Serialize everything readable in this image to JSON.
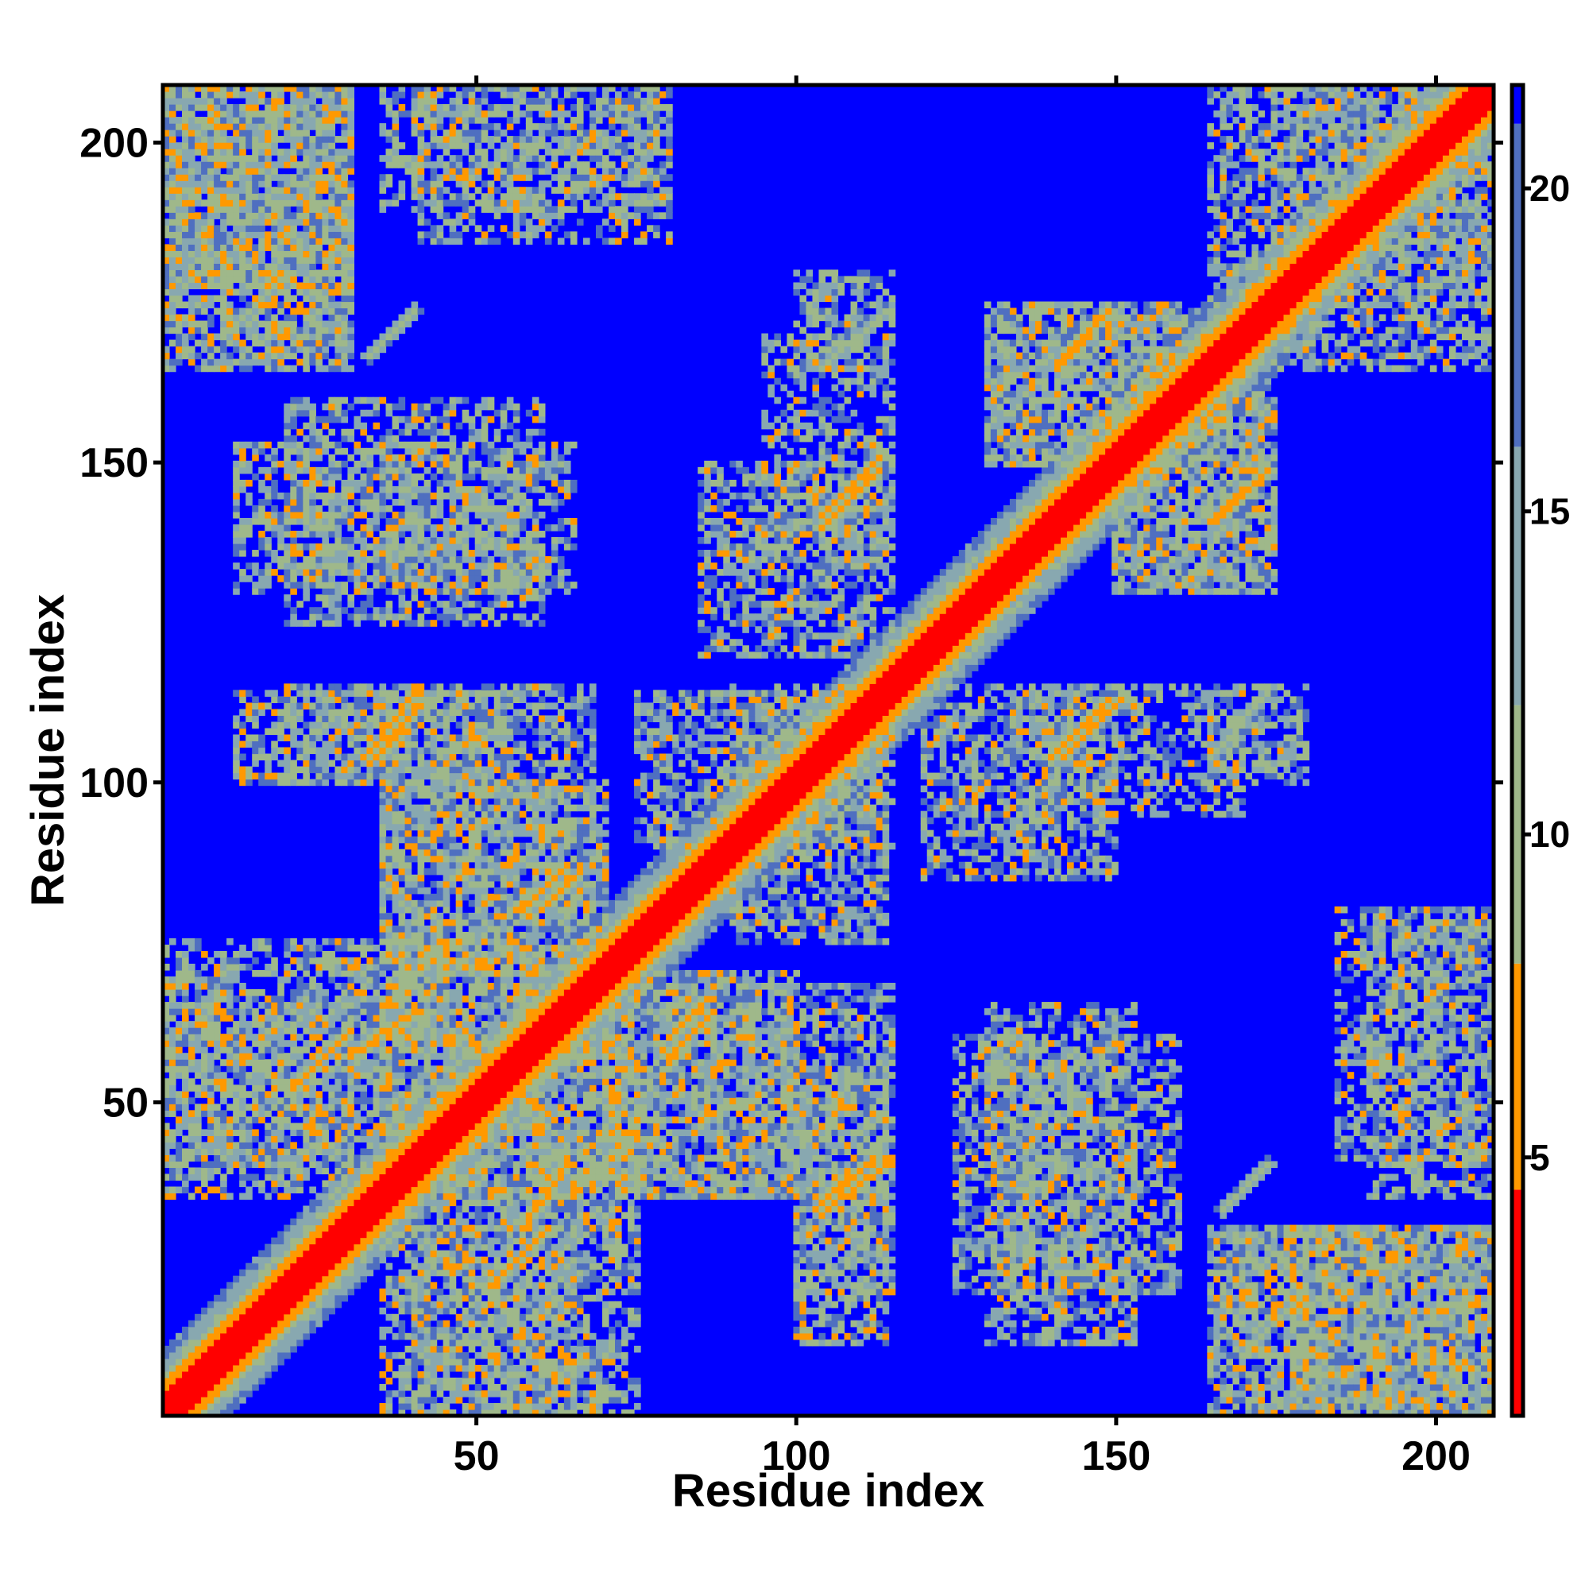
{
  "chart_data": {
    "type": "heatmap",
    "title": "",
    "xlabel": "Residue index",
    "ylabel": "Residue index",
    "n_residues": 209,
    "xlim": [
      1,
      209
    ],
    "ylim": [
      1,
      209
    ],
    "x_ticks": [
      50,
      100,
      150,
      200
    ],
    "y_ticks": [
      50,
      100,
      150,
      200
    ],
    "grid": false,
    "colorbar": {
      "ticks": [
        5,
        10,
        15,
        20
      ],
      "range": [
        1,
        21.6
      ],
      "bands": [
        {
          "from": 1,
          "to": 4.5,
          "color": "#ff0000"
        },
        {
          "from": 4.5,
          "to": 8,
          "color": "#ff9900"
        },
        {
          "from": 8,
          "to": 12,
          "color": "#9fb88a"
        },
        {
          "from": 12,
          "to": 16,
          "color": "#88a8b0"
        },
        {
          "from": 16,
          "to": 21,
          "color": "#4f6fc0"
        },
        {
          "from": 21,
          "to": 21.6,
          "color": "#0000ff"
        }
      ]
    },
    "background_value": 21.6,
    "diagonal_band_width": 3,
    "contact_blocks": [
      {
        "x": [
          1,
          30
        ],
        "y": [
          178,
          209
        ],
        "density": 0.7,
        "orange": 0.12
      },
      {
        "x": [
          35,
          80
        ],
        "y": [
          190,
          209
        ],
        "density": 0.5,
        "orange": 0.08
      },
      {
        "x": [
          10,
          30
        ],
        "y": [
          165,
          185
        ],
        "density": 0.45,
        "orange": 0.08
      },
      {
        "x": [
          12,
          65
        ],
        "y": [
          130,
          153
        ],
        "density": 0.6,
        "orange": 0.1
      },
      {
        "x": [
          12,
          55
        ],
        "y": [
          100,
          114
        ],
        "density": 0.6,
        "orange": 0.12
      },
      {
        "x": [
          35,
          70
        ],
        "y": [
          57,
          100
        ],
        "density": 0.6,
        "orange": 0.1
      },
      {
        "x": [
          75,
          115
        ],
        "y": [
          90,
          114
        ],
        "density": 0.6,
        "orange": 0.1
      },
      {
        "x": [
          1,
          45
        ],
        "y": [
          35,
          75
        ],
        "density": 0.6,
        "orange": 0.12
      },
      {
        "x": [
          45,
          75
        ],
        "y": [
          30,
          60
        ],
        "density": 0.6,
        "orange": 0.1
      },
      {
        "x": [
          70,
          115
        ],
        "y": [
          35,
          68
        ],
        "density": 0.6,
        "orange": 0.1
      },
      {
        "x": [
          40,
          65
        ],
        "y": [
          1,
          30
        ],
        "density": 0.6,
        "orange": 0.1
      },
      {
        "x": [
          100,
          115
        ],
        "y": [
          20,
          40
        ],
        "density": 0.6,
        "orange": 0.12
      },
      {
        "x": [
          130,
          160
        ],
        "y": [
          150,
          175
        ],
        "density": 0.55,
        "orange": 0.08
      },
      {
        "x": [
          150,
          175
        ],
        "y": [
          130,
          165
        ],
        "density": 0.6,
        "orange": 0.1
      },
      {
        "x": [
          95,
          115
        ],
        "y": [
          135,
          170
        ],
        "density": 0.5,
        "orange": 0.08
      },
      {
        "x": [
          120,
          150
        ],
        "y": [
          85,
          115
        ],
        "density": 0.6,
        "orange": 0.1
      },
      {
        "x": [
          165,
          180
        ],
        "y": [
          100,
          115
        ],
        "density": 0.6,
        "orange": 0.05
      },
      {
        "x": [
          125,
          160
        ],
        "y": [
          20,
          60
        ],
        "density": 0.55,
        "orange": 0.08
      },
      {
        "x": [
          165,
          209
        ],
        "y": [
          1,
          30
        ],
        "density": 0.75,
        "orange": 0.12
      },
      {
        "x": [
          185,
          209
        ],
        "y": [
          40,
          80
        ],
        "density": 0.5,
        "orange": 0.08
      },
      {
        "x": [
          175,
          209
        ],
        "y": [
          165,
          209
        ],
        "density": 0.55,
        "orange": 0.1
      }
    ],
    "streaks": [
      {
        "x": [
          52,
          61
        ],
        "y": [
          21,
          30
        ],
        "color": "#ff9900"
      },
      {
        "x": [
          30,
          40
        ],
        "y": [
          57,
          64
        ],
        "color": "#ff9900"
      },
      {
        "x": [
          60,
          66
        ],
        "y": [
          80,
          86
        ],
        "color": "#ff9900"
      },
      {
        "x": [
          34,
          41
        ],
        "y": [
          104,
          112
        ],
        "color": "#ff9900"
      },
      {
        "x": [
          105,
          114
        ],
        "y": [
          33,
          40
        ],
        "color": "#ff9900"
      },
      {
        "x": [
          80,
          86
        ],
        "y": [
          57,
          63
        ],
        "color": "#ff9900"
      },
      {
        "x": [
          104,
          113
        ],
        "y": [
          142,
          151
        ],
        "color": "#ff9900"
      },
      {
        "x": [
          140,
          149
        ],
        "y": [
          104,
          113
        ],
        "color": "#ff9900"
      },
      {
        "x": [
          142,
          149
        ],
        "y": [
          166,
          174
        ],
        "color": "#ff9900"
      },
      {
        "x": [
          166,
          174
        ],
        "y": [
          141,
          149
        ],
        "color": "#ff9900"
      },
      {
        "x": [
          10,
          18
        ],
        "y": [
          170,
          178
        ],
        "color": "#9fb88a"
      },
      {
        "x": [
          33,
          40
        ],
        "y": [
          167,
          174
        ],
        "color": "#9fb88a"
      },
      {
        "x": [
          104,
          114
        ],
        "y": [
          165,
          174
        ],
        "color": "#9fb88a"
      },
      {
        "x": [
          165,
          174
        ],
        "y": [
          104,
          114
        ],
        "color": "#9fb88a"
      },
      {
        "x": [
          167,
          174
        ],
        "y": [
          33,
          40
        ],
        "color": "#9fb88a"
      }
    ]
  }
}
